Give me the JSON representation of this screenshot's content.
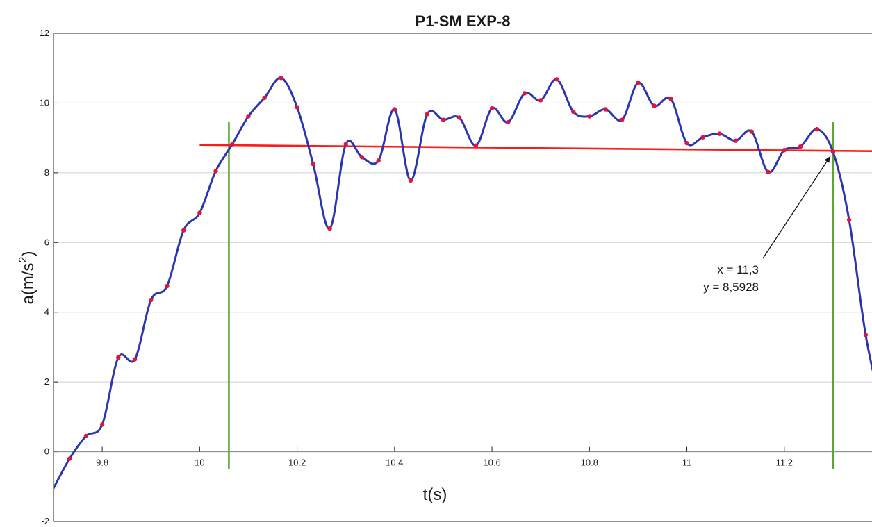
{
  "chart_data": {
    "type": "line",
    "title": "P1-SM EXP-8",
    "xlabel": "t(s)",
    "ylabel_main": "a(m/s",
    "ylabel_sup": "2",
    "ylabel_close": ")",
    "xlim": [
      9.7,
      11.38
    ],
    "ylim": [
      -2,
      12
    ],
    "x_ticks": [
      9.8,
      10,
      10.2,
      10.4,
      10.6,
      10.8,
      11,
      11.2
    ],
    "x_tick_labels": [
      "9.8",
      "10",
      "10.2",
      "10.4",
      "10.6",
      "10.8",
      "11",
      "11.2"
    ],
    "y_ticks": [
      -2,
      0,
      2,
      4,
      6,
      8,
      10,
      12
    ],
    "y_tick_labels": [
      "-2",
      "0",
      "2",
      "4",
      "6",
      "8",
      "10",
      "12"
    ],
    "grid": "horizontal",
    "colors": {
      "curve": "#2b35b0",
      "points": "#e0143c",
      "fit_line": "#ff1a1a",
      "markers": "#5aa832",
      "grid": "#cfcfcf"
    },
    "series": [
      {
        "kind": "smoothed-curve-with-points",
        "x": [
          9.733,
          9.767,
          9.8,
          9.833,
          9.867,
          9.9,
          9.933,
          9.967,
          10.0,
          10.033,
          10.067,
          10.1,
          10.133,
          10.167,
          10.2,
          10.233,
          10.267,
          10.3,
          10.333,
          10.367,
          10.4,
          10.433,
          10.467,
          10.5,
          10.533,
          10.567,
          10.6,
          10.633,
          10.667,
          10.7,
          10.733,
          10.767,
          10.8,
          10.833,
          10.867,
          10.9,
          10.933,
          10.967,
          11.0,
          11.033,
          11.067,
          11.1,
          11.133,
          11.167,
          11.2,
          11.233,
          11.267,
          11.3,
          11.333,
          11.367
        ],
        "y": [
          -0.2,
          0.45,
          0.78,
          2.7,
          2.65,
          4.35,
          4.75,
          6.35,
          6.85,
          8.05,
          8.82,
          9.62,
          10.15,
          10.72,
          9.88,
          8.25,
          6.4,
          8.82,
          8.45,
          8.35,
          9.82,
          7.78,
          9.68,
          9.52,
          9.58,
          8.78,
          9.85,
          9.45,
          10.28,
          10.08,
          10.68,
          9.75,
          9.62,
          9.82,
          9.52,
          10.58,
          9.92,
          10.12,
          8.85,
          9.02,
          9.12,
          8.92,
          9.18,
          8.02,
          8.65,
          8.75,
          9.25,
          8.6,
          6.65,
          3.35
        ]
      },
      {
        "kind": "fit-line",
        "x": [
          10.0,
          11.38
        ],
        "y": [
          8.8,
          8.62
        ]
      }
    ],
    "vertical_markers": [
      10.06,
      11.3
    ],
    "vertical_marker_range": [
      -0.5,
      9.45
    ],
    "annotation": {
      "line1": "x = 11,3",
      "line2": "y = 8,5928",
      "point": [
        11.3,
        8.5928
      ]
    }
  }
}
